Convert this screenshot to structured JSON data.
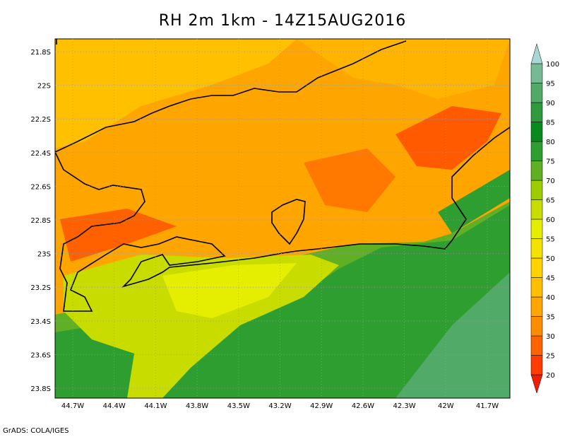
{
  "title": "RH 2m 1km - 14Z15AUG2016",
  "lat_labels": [
    "21.8S",
    "22S",
    "22.2S",
    "22.4S",
    "22.6S",
    "22.8S",
    "23S",
    "23.2S",
    "23.4S",
    "23.6S",
    "23.8S"
  ],
  "lon_labels": [
    "44.7W",
    "44.4W",
    "44.1W",
    "43.8W",
    "43.5W",
    "43.2W",
    "42.9W",
    "42.6W",
    "42.3W",
    "42W",
    "41.7W"
  ],
  "colorbar": {
    "levels": [
      20,
      25,
      30,
      35,
      40,
      45,
      50,
      55,
      60,
      65,
      70,
      75,
      80,
      85,
      90,
      95,
      100
    ],
    "colors": [
      "#f01e00",
      "#ff3c00",
      "#ff6400",
      "#ff8c00",
      "#ffa500",
      "#ffbe00",
      "#ffd200",
      "#f5e100",
      "#e6ee00",
      "#c8dc00",
      "#9ccc00",
      "#60b024",
      "#2e9e30",
      "#0a8a1e",
      "#2f9a3c",
      "#52aa68",
      "#74ba92",
      "#a8d8d4"
    ]
  },
  "footer": "GrADS: COLA/IGES"
}
